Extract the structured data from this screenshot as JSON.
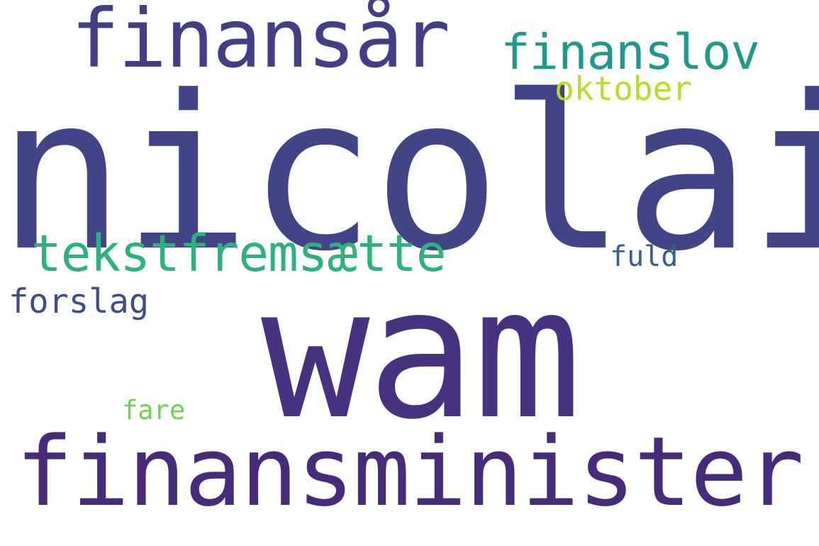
{
  "words": {
    "nicolai": {
      "text": "nicolai",
      "color": "#414487"
    },
    "wam": {
      "text": "wam",
      "color": "#46327e"
    },
    "finansminister": {
      "text": "finansminister",
      "color": "#472a7a"
    },
    "finansar": {
      "text": "finansår",
      "color": "#433e85"
    },
    "finanslov": {
      "text": "finanslov",
      "color": "#1f9a8a"
    },
    "tekstfremsaette": {
      "text": "tekstfremsætte",
      "color": "#2db27d"
    },
    "oktober": {
      "text": "oktober",
      "color": "#b5de2b"
    },
    "forslag": {
      "text": "forslag",
      "color": "#3e4c8a"
    },
    "fuld": {
      "text": "fuld",
      "color": "#35608d"
    },
    "fare": {
      "text": "fare",
      "color": "#73d056"
    }
  }
}
